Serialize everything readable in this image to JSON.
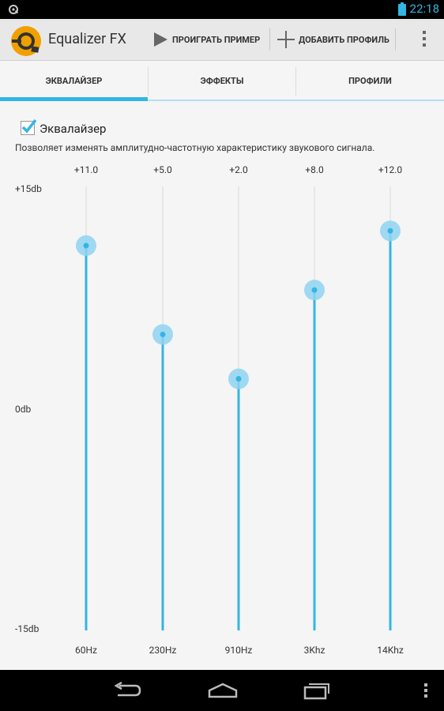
{
  "status": {
    "time": "22:18"
  },
  "app": {
    "title": "Equalizer FX"
  },
  "actions": {
    "play_label": "ПРОИГРАТЬ ПРИМЕР",
    "add_label": "ДОБАВИТЬ ПРОФИЛЬ"
  },
  "tabs": [
    {
      "label": "ЭКВАЛАЙЗЕР",
      "active": true
    },
    {
      "label": "ЭФФЕКТЫ",
      "active": false
    },
    {
      "label": "ПРОФИЛИ",
      "active": false
    }
  ],
  "equalizer": {
    "checkbox_label": "Эквалайзер",
    "checked": true,
    "description": "Позволяет изменять амплитудно-частотную характеристику звукового сигнала.",
    "max_label": "+15db",
    "zero_label": "0db",
    "min_label": "-15db",
    "range": [
      -15,
      15
    ],
    "bands": [
      {
        "freq": "60Hz",
        "value_label": "+11.0",
        "level": 11
      },
      {
        "freq": "230Hz",
        "value_label": "+5.0",
        "level": 5
      },
      {
        "freq": "910Hz",
        "value_label": "+2.0",
        "level": 2
      },
      {
        "freq": "3Khz",
        "value_label": "+8.0",
        "level": 8
      },
      {
        "freq": "14Khz",
        "value_label": "+12.0",
        "level": 12
      }
    ]
  },
  "colors": {
    "accent": "#33b5e5",
    "thumb": "#8fd4f0",
    "track": "#d9d9d9"
  }
}
